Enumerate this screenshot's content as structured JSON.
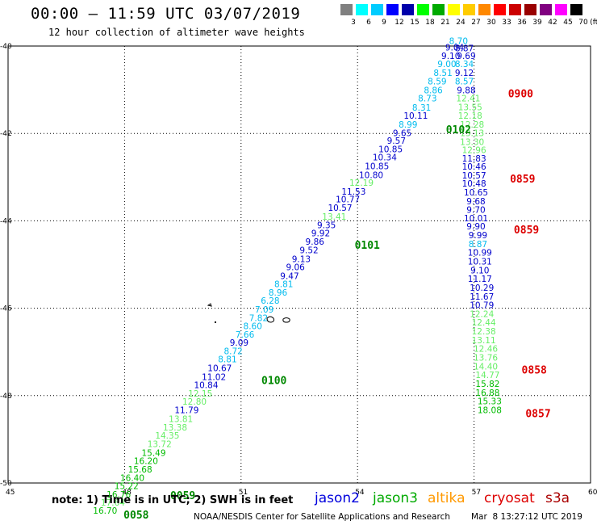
{
  "title": "00:00 – 11:59 UTC 03/07/2019",
  "subtitle": "12 hour collection of altimeter wave heights",
  "color_scale": {
    "unit": "(ft)",
    "swatches": [
      "#808080",
      "#00ffff",
      "#00ccff",
      "#0000ff",
      "#0000aa",
      "#00ff00",
      "#00aa00",
      "#ffff00",
      "#ffcc00",
      "#ff8800",
      "#ff0000",
      "#cc0000",
      "#990000",
      "#800080",
      "#ff00ff",
      "#000000"
    ],
    "labels": [
      "3",
      "6",
      "9",
      "12",
      "15",
      "18",
      "21",
      "24",
      "27",
      "30",
      "33",
      "36",
      "39",
      "42",
      "45",
      "70"
    ]
  },
  "x_ticks": [
    "45",
    "48",
    "51",
    "54",
    "57",
    "60"
  ],
  "y_ticks": [
    "-40",
    "-42",
    "-44",
    "-46",
    "-48",
    "-50"
  ],
  "note": "note: 1) Time is in UTC; 2) SWH is in feet",
  "legend": [
    {
      "name": "jason2",
      "color": "#0000dd"
    },
    {
      "name": "jason3",
      "color": "#00aa00"
    },
    {
      "name": "altika",
      "color": "#ff9900"
    },
    {
      "name": "cryosat",
      "color": "#dd0000"
    },
    {
      "name": "s3a",
      "color": "#aa0000"
    }
  ],
  "credit": "NOAA/NESDIS Center for Satellite Applications and Research",
  "timestamp": "Mar  8 13:27:12 UTC 2019",
  "colors": {
    "c9": "#00bbee",
    "c12": "#0000cc",
    "c15": "#66ee66",
    "c18": "#00bb00",
    "time_green": "#008800",
    "time_red": "#dd0000"
  },
  "tracks": [
    {
      "name": "ascending-track",
      "points": [
        {
          "lon": 56.6,
          "lat": -39.95,
          "v": "8.70",
          "c": "c9"
        },
        {
          "lon": 56.5,
          "lat": -40.1,
          "v": "9.04",
          "c": "c12"
        },
        {
          "lon": 56.4,
          "lat": -40.3,
          "v": "9.10",
          "c": "c12"
        },
        {
          "lon": 56.3,
          "lat": -40.48,
          "v": "9.00",
          "c": "c9"
        },
        {
          "lon": 56.2,
          "lat": -40.68,
          "v": "8.51",
          "c": "c9"
        },
        {
          "lon": 56.05,
          "lat": -40.88,
          "v": "8.59",
          "c": "c9"
        },
        {
          "lon": 55.95,
          "lat": -41.08,
          "v": "8.86",
          "c": "c9"
        },
        {
          "lon": 55.8,
          "lat": -41.27,
          "v": "8.73",
          "c": "c9"
        },
        {
          "lon": 55.65,
          "lat": -41.48,
          "v": "8.31",
          "c": "c9"
        },
        {
          "lon": 55.5,
          "lat": -41.66,
          "v": "10.11",
          "c": "c12"
        },
        {
          "lon": 55.3,
          "lat": -41.87,
          "v": "8.99",
          "c": "c9"
        },
        {
          "lon": 55.15,
          "lat": -42.06,
          "v": "9.65",
          "c": "c12"
        },
        {
          "lon": 55.0,
          "lat": -42.24,
          "v": "9.57",
          "c": "c12"
        },
        {
          "lon": 54.85,
          "lat": -42.43,
          "v": "10.85",
          "c": "c12"
        },
        {
          "lon": 54.7,
          "lat": -42.62,
          "v": "10.34",
          "c": "c12"
        },
        {
          "lon": 54.5,
          "lat": -42.82,
          "v": "10.85",
          "c": "c12"
        },
        {
          "lon": 54.35,
          "lat": -43.02,
          "v": "10.80",
          "c": "c12"
        },
        {
          "lon": 54.1,
          "lat": -43.2,
          "v": "12.19",
          "c": "c15"
        },
        {
          "lon": 53.9,
          "lat": -43.4,
          "v": "11.53",
          "c": "c12"
        },
        {
          "lon": 53.75,
          "lat": -43.58,
          "v": "10.77",
          "c": "c12"
        },
        {
          "lon": 53.55,
          "lat": -43.77,
          "v": "10.57",
          "c": "c12"
        },
        {
          "lon": 53.4,
          "lat": -43.97,
          "v": "13.41",
          "c": "c15"
        },
        {
          "lon": 53.2,
          "lat": -44.17,
          "v": "9.35",
          "c": "c12"
        },
        {
          "lon": 53.05,
          "lat": -44.35,
          "v": "9.92",
          "c": "c12"
        },
        {
          "lon": 52.9,
          "lat": -44.55,
          "v": "9.86",
          "c": "c12"
        },
        {
          "lon": 52.75,
          "lat": -44.74,
          "v": "9.52",
          "c": "c12"
        },
        {
          "lon": 52.55,
          "lat": -44.94,
          "v": "9.13",
          "c": "c12"
        },
        {
          "lon": 52.4,
          "lat": -45.13,
          "v": "9.06",
          "c": "c12"
        },
        {
          "lon": 52.25,
          "lat": -45.33,
          "v": "9.47",
          "c": "c12"
        },
        {
          "lon": 52.1,
          "lat": -45.52,
          "v": "8.81",
          "c": "c9"
        },
        {
          "lon": 51.95,
          "lat": -45.71,
          "v": "8.96",
          "c": "c9"
        },
        {
          "lon": 51.75,
          "lat": -45.9,
          "v": "6.28",
          "c": "c9"
        },
        {
          "lon": 51.6,
          "lat": -46.1,
          "v": "7.09",
          "c": "c9"
        },
        {
          "lon": 51.45,
          "lat": -46.29,
          "v": "7.82",
          "c": "c9"
        },
        {
          "lon": 51.3,
          "lat": -46.48,
          "v": "8.60",
          "c": "c9"
        },
        {
          "lon": 51.1,
          "lat": -46.67,
          "v": "7.66",
          "c": "c9"
        },
        {
          "lon": 50.95,
          "lat": -46.86,
          "v": "9.09",
          "c": "c12"
        },
        {
          "lon": 50.8,
          "lat": -47.05,
          "v": "8.72",
          "c": "c9"
        },
        {
          "lon": 50.65,
          "lat": -47.24,
          "v": "8.81",
          "c": "c9"
        },
        {
          "lon": 50.45,
          "lat": -47.44,
          "v": "10.67",
          "c": "c12"
        },
        {
          "lon": 50.3,
          "lat": -47.64,
          "v": "11.02",
          "c": "c12"
        },
        {
          "lon": 50.1,
          "lat": -47.83,
          "v": "10.84",
          "c": "c12"
        },
        {
          "lon": 49.95,
          "lat": -48.02,
          "v": "12.15",
          "c": "c15"
        },
        {
          "lon": 49.8,
          "lat": -48.21,
          "v": "12.80",
          "c": "c15"
        },
        {
          "lon": 49.6,
          "lat": -48.4,
          "v": "11.79",
          "c": "c12"
        },
        {
          "lon": 49.45,
          "lat": -48.6,
          "v": "13.81",
          "c": "c15"
        },
        {
          "lon": 49.3,
          "lat": -48.8,
          "v": "13.38",
          "c": "c15"
        },
        {
          "lon": 49.1,
          "lat": -48.98,
          "v": "14.35",
          "c": "c15"
        },
        {
          "lon": 48.9,
          "lat": -49.18,
          "v": "13.72",
          "c": "c15"
        },
        {
          "lon": 48.75,
          "lat": -49.38,
          "v": "15.49",
          "c": "c18"
        },
        {
          "lon": 48.55,
          "lat": -49.57,
          "v": "16.20",
          "c": "c18"
        },
        {
          "lon": 48.4,
          "lat": -49.76,
          "v": "15.68",
          "c": "c18"
        },
        {
          "lon": 48.2,
          "lat": -49.95,
          "v": "16.40",
          "c": "c18"
        },
        {
          "lon": 48.05,
          "lat": -50.14,
          "v": "15.22",
          "c": "c18"
        },
        {
          "lon": 47.85,
          "lat": -50.33,
          "v": "16.76",
          "c": "c18"
        },
        {
          "lon": 47.7,
          "lat": -50.52,
          "v": "17.64",
          "c": "c15"
        },
        {
          "lon": 47.5,
          "lat": -50.7,
          "v": "16.70",
          "c": "c18"
        }
      ]
    },
    {
      "name": "descending-track",
      "points": [
        {
          "lon": 56.75,
          "lat": -40.12,
          "v": "8.87",
          "c": "c12"
        },
        {
          "lon": 56.8,
          "lat": -40.3,
          "v": "9.69",
          "c": "c12"
        },
        {
          "lon": 56.75,
          "lat": -40.48,
          "v": "8.34",
          "c": "c9"
        },
        {
          "lon": 56.75,
          "lat": -40.68,
          "v": "9.12",
          "c": "c12"
        },
        {
          "lon": 56.75,
          "lat": -40.88,
          "v": "8.57",
          "c": "c9"
        },
        {
          "lon": 56.8,
          "lat": -41.08,
          "v": "9.88",
          "c": "c12"
        },
        {
          "lon": 56.85,
          "lat": -41.27,
          "v": "12.41",
          "c": "c15"
        },
        {
          "lon": 56.9,
          "lat": -41.47,
          "v": "13.55",
          "c": "c15"
        },
        {
          "lon": 56.9,
          "lat": -41.66,
          "v": "12.18",
          "c": "c15"
        },
        {
          "lon": 56.95,
          "lat": -41.87,
          "v": "12.28",
          "c": "c15"
        },
        {
          "lon": 56.95,
          "lat": -42.06,
          "v": "13.13",
          "c": "c15"
        },
        {
          "lon": 56.95,
          "lat": -42.26,
          "v": "13.30",
          "c": "c15"
        },
        {
          "lon": 57.0,
          "lat": -42.45,
          "v": "12.96",
          "c": "c15"
        },
        {
          "lon": 57.0,
          "lat": -42.64,
          "v": "11.83",
          "c": "c12"
        },
        {
          "lon": 57.0,
          "lat": -42.83,
          "v": "10.46",
          "c": "c12"
        },
        {
          "lon": 57.0,
          "lat": -43.03,
          "v": "10.57",
          "c": "c12"
        },
        {
          "lon": 57.0,
          "lat": -43.22,
          "v": "10.48",
          "c": "c12"
        },
        {
          "lon": 57.05,
          "lat": -43.42,
          "v": "10.65",
          "c": "c12"
        },
        {
          "lon": 57.05,
          "lat": -43.62,
          "v": "9.68",
          "c": "c12"
        },
        {
          "lon": 57.05,
          "lat": -43.82,
          "v": "9.70",
          "c": "c12"
        },
        {
          "lon": 57.05,
          "lat": -44.01,
          "v": "10.01",
          "c": "c12"
        },
        {
          "lon": 57.05,
          "lat": -44.2,
          "v": "9.90",
          "c": "c12"
        },
        {
          "lon": 57.1,
          "lat": -44.4,
          "v": "9.99",
          "c": "c12"
        },
        {
          "lon": 57.1,
          "lat": -44.6,
          "v": "8.87",
          "c": "c9"
        },
        {
          "lon": 57.15,
          "lat": -44.8,
          "v": "10.99",
          "c": "c12"
        },
        {
          "lon": 57.15,
          "lat": -45.0,
          "v": "10.31",
          "c": "c12"
        },
        {
          "lon": 57.15,
          "lat": -45.2,
          "v": "9.10",
          "c": "c12"
        },
        {
          "lon": 57.15,
          "lat": -45.4,
          "v": "11.17",
          "c": "c12"
        },
        {
          "lon": 57.2,
          "lat": -45.6,
          "v": "10.29",
          "c": "c12"
        },
        {
          "lon": 57.2,
          "lat": -45.8,
          "v": "11.67",
          "c": "c12"
        },
        {
          "lon": 57.2,
          "lat": -46.0,
          "v": "10.79",
          "c": "c12"
        },
        {
          "lon": 57.2,
          "lat": -46.2,
          "v": "12.24",
          "c": "c15"
        },
        {
          "lon": 57.25,
          "lat": -46.4,
          "v": "12.44",
          "c": "c15"
        },
        {
          "lon": 57.25,
          "lat": -46.6,
          "v": "12.38",
          "c": "c15"
        },
        {
          "lon": 57.25,
          "lat": -46.8,
          "v": "13.11",
          "c": "c15"
        },
        {
          "lon": 57.3,
          "lat": -47.0,
          "v": "12.46",
          "c": "c15"
        },
        {
          "lon": 57.3,
          "lat": -47.2,
          "v": "13.76",
          "c": "c15"
        },
        {
          "lon": 57.3,
          "lat": -47.4,
          "v": "14.40",
          "c": "c15"
        },
        {
          "lon": 57.35,
          "lat": -47.6,
          "v": "14.77",
          "c": "c15"
        },
        {
          "lon": 57.35,
          "lat": -47.8,
          "v": "15.82",
          "c": "c18"
        },
        {
          "lon": 57.35,
          "lat": -48.0,
          "v": "16.88",
          "c": "c18"
        },
        {
          "lon": 57.4,
          "lat": -48.2,
          "v": "15.33",
          "c": "c18"
        },
        {
          "lon": 57.4,
          "lat": -48.4,
          "v": "18.08",
          "c": "c18"
        }
      ]
    }
  ],
  "time_labels": [
    {
      "text": "0102",
      "c": "time_green",
      "lon": 56.6,
      "lat": -41.9
    },
    {
      "text": "0101",
      "c": "time_green",
      "lon": 54.25,
      "lat": -44.55
    },
    {
      "text": "0100",
      "c": "time_green",
      "lon": 51.85,
      "lat": -47.64
    },
    {
      "text": "0059",
      "c": "time_green",
      "lon": 49.5,
      "lat": -50.28
    },
    {
      "text": "0058",
      "c": "time_green",
      "lon": 48.3,
      "lat": -50.72
    },
    {
      "text": "0900",
      "c": "time_red",
      "lon": 58.2,
      "lat": -41.08
    },
    {
      "text": "0859",
      "c": "time_red",
      "lon": 58.25,
      "lat": -43.03
    },
    {
      "text": "0859",
      "c": "time_red",
      "lon": 58.35,
      "lat": -44.2
    },
    {
      "text": "0858",
      "c": "time_red",
      "lon": 58.55,
      "lat": -47.4
    },
    {
      "text": "0857",
      "c": "time_red",
      "lon": 58.65,
      "lat": -48.4
    }
  ]
}
